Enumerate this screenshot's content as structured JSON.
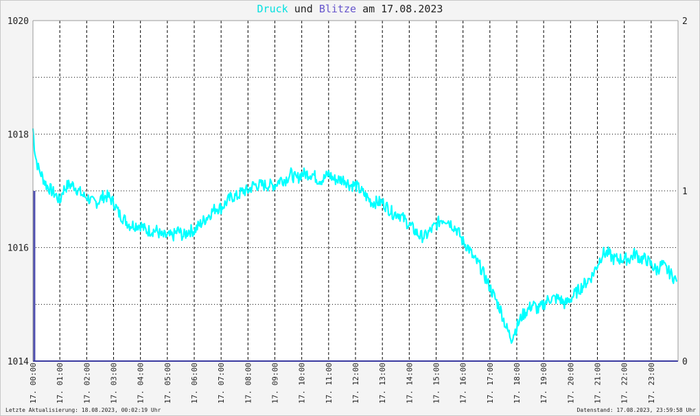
{
  "title": {
    "word_druck": "Druck",
    "word_und": "und",
    "word_blitze": "Blitze",
    "word_am": "am",
    "date": "17.08.2023"
  },
  "footer": {
    "left": "Letzte Aktualisierung: 18.08.2023, 00:02:19 Uhr",
    "right": "Datenstand: 17.08.2023, 23:59:58 Uhr"
  },
  "colors": {
    "pressure": "#00ffff",
    "lightning": "#5050b0",
    "axis": "#3a3aa0",
    "grid": "#000000",
    "plot_bg": "#ffffff"
  },
  "chart_data": {
    "type": "line",
    "title": "Druck und Blitze am 17.08.2023",
    "x_tick_labels": [
      "17. 00:00",
      "17. 01:00",
      "17. 02:00",
      "17. 03:00",
      "17. 04:00",
      "17. 05:00",
      "17. 06:00",
      "17. 07:00",
      "17. 08:00",
      "17. 09:00",
      "17. 10:00",
      "17. 11:00",
      "17. 12:00",
      "17. 13:00",
      "17. 14:00",
      "17. 15:00",
      "17. 16:00",
      "17. 17:00",
      "17. 18:00",
      "17. 19:00",
      "17. 20:00",
      "17. 21:00",
      "17. 22:00",
      "17. 23:00"
    ],
    "left_axis": {
      "ylim": [
        1014,
        1020
      ],
      "ticks": [
        "1014",
        "1016",
        "1018",
        "1020"
      ]
    },
    "right_axis": {
      "ylim": [
        0,
        2
      ],
      "ticks": [
        "0",
        "1",
        "2"
      ]
    },
    "xlim_hours": [
      0,
      24
    ],
    "grid": true,
    "series": [
      {
        "name": "Druck",
        "axis": "left",
        "x_hours": [
          0,
          0.05,
          0.1,
          0.2,
          0.3,
          0.5,
          0.7,
          0.9,
          1.0,
          1.1,
          1.3,
          1.5,
          1.7,
          1.9,
          2.0,
          2.2,
          2.4,
          2.6,
          2.8,
          3.0,
          3.2,
          3.4,
          3.6,
          3.8,
          4.0,
          4.2,
          4.4,
          4.6,
          4.8,
          5.0,
          5.2,
          5.4,
          5.6,
          5.8,
          6.0,
          6.2,
          6.4,
          6.6,
          6.8,
          7.0,
          7.2,
          7.4,
          7.6,
          7.8,
          8.0,
          8.2,
          8.4,
          8.6,
          8.8,
          9.0,
          9.2,
          9.4,
          9.6,
          9.8,
          10.0,
          10.2,
          10.4,
          10.6,
          10.8,
          11.0,
          11.2,
          11.4,
          11.6,
          11.8,
          12.0,
          12.2,
          12.4,
          12.6,
          12.8,
          13.0,
          13.2,
          13.4,
          13.6,
          13.8,
          14.0,
          14.2,
          14.4,
          14.6,
          14.8,
          15.0,
          15.2,
          15.4,
          15.6,
          15.8,
          16.0,
          16.2,
          16.4,
          16.6,
          16.8,
          17.0,
          17.2,
          17.4,
          17.6,
          17.8,
          18.0,
          18.2,
          18.4,
          18.6,
          18.8,
          19.0,
          19.2,
          19.4,
          19.6,
          19.8,
          20.0,
          20.2,
          20.4,
          20.6,
          20.8,
          21.0,
          21.2,
          21.4,
          21.6,
          21.8,
          22.0,
          22.2,
          22.4,
          22.6,
          22.8,
          23.0,
          23.2,
          23.4,
          23.6,
          23.8,
          23.95
        ],
        "values": [
          1018.1,
          1017.8,
          1017.6,
          1017.4,
          1017.3,
          1017.1,
          1017.0,
          1016.9,
          1016.8,
          1017.0,
          1017.1,
          1017.1,
          1017.0,
          1016.9,
          1016.9,
          1016.8,
          1016.8,
          1016.9,
          1016.9,
          1016.8,
          1016.6,
          1016.5,
          1016.4,
          1016.4,
          1016.4,
          1016.3,
          1016.3,
          1016.3,
          1016.2,
          1016.2,
          1016.2,
          1016.3,
          1016.2,
          1016.3,
          1016.3,
          1016.4,
          1016.5,
          1016.6,
          1016.7,
          1016.7,
          1016.8,
          1016.9,
          1016.9,
          1017.0,
          1017.0,
          1017.1,
          1017.1,
          1017.1,
          1017.1,
          1017.1,
          1017.2,
          1017.2,
          1017.3,
          1017.2,
          1017.3,
          1017.3,
          1017.3,
          1017.2,
          1017.2,
          1017.3,
          1017.2,
          1017.2,
          1017.2,
          1017.1,
          1017.1,
          1017.0,
          1016.9,
          1016.8,
          1016.8,
          1016.8,
          1016.7,
          1016.6,
          1016.6,
          1016.5,
          1016.4,
          1016.3,
          1016.2,
          1016.2,
          1016.3,
          1016.4,
          1016.5,
          1016.5,
          1016.4,
          1016.3,
          1016.1,
          1016.0,
          1015.8,
          1015.7,
          1015.5,
          1015.3,
          1015.1,
          1014.9,
          1014.6,
          1014.4,
          1014.6,
          1014.8,
          1014.9,
          1015.0,
          1014.9,
          1015.0,
          1015.1,
          1015.1,
          1015.1,
          1015.0,
          1015.1,
          1015.2,
          1015.3,
          1015.4,
          1015.5,
          1015.7,
          1015.9,
          1015.9,
          1015.8,
          1015.8,
          1015.8,
          1015.8,
          1015.9,
          1015.8,
          1015.8,
          1015.7,
          1015.6,
          1015.7,
          1015.6,
          1015.5,
          1015.4
        ]
      },
      {
        "name": "Blitze",
        "axis": "right",
        "x_hours": [
          0.05
        ],
        "values": [
          1
        ]
      }
    ]
  }
}
